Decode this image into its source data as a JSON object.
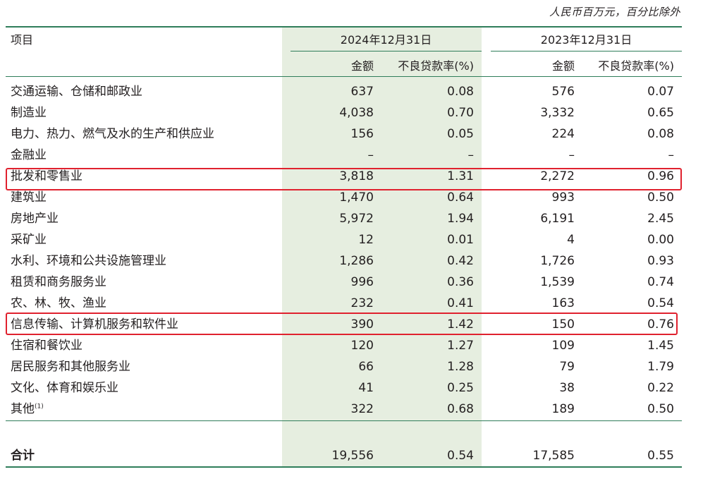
{
  "unit_note": "人民币百万元，百分比除外",
  "header": {
    "item": "项目",
    "period_2024": "2024年12月31日",
    "period_2023": "2023年12月31日",
    "amount": "金额",
    "npl_ratio": "不良贷款率(%)"
  },
  "rows": [
    {
      "item": "交通运输、仓储和邮政业",
      "amt_2024": "637",
      "npl_2024": "0.08",
      "amt_2023": "576",
      "npl_2023": "0.07"
    },
    {
      "item": "制造业",
      "amt_2024": "4,038",
      "npl_2024": "0.70",
      "amt_2023": "3,332",
      "npl_2023": "0.65"
    },
    {
      "item": "电力、热力、燃气及水的生产和供应业",
      "amt_2024": "156",
      "npl_2024": "0.05",
      "amt_2023": "224",
      "npl_2023": "0.08"
    },
    {
      "item": "金融业",
      "amt_2024": "–",
      "npl_2024": "–",
      "amt_2023": "–",
      "npl_2023": "–"
    },
    {
      "item": "批发和零售业",
      "amt_2024": "3,818",
      "npl_2024": "1.31",
      "amt_2023": "2,272",
      "npl_2023": "0.96"
    },
    {
      "item": "建筑业",
      "amt_2024": "1,470",
      "npl_2024": "0.64",
      "amt_2023": "993",
      "npl_2023": "0.50"
    },
    {
      "item": "房地产业",
      "amt_2024": "5,972",
      "npl_2024": "1.94",
      "amt_2023": "6,191",
      "npl_2023": "2.45"
    },
    {
      "item": "采矿业",
      "amt_2024": "12",
      "npl_2024": "0.01",
      "amt_2023": "4",
      "npl_2023": "0.00"
    },
    {
      "item": "水利、环境和公共设施管理业",
      "amt_2024": "1,286",
      "npl_2024": "0.42",
      "amt_2023": "1,726",
      "npl_2023": "0.93"
    },
    {
      "item": "租赁和商务服务业",
      "amt_2024": "996",
      "npl_2024": "0.36",
      "amt_2023": "1,539",
      "npl_2023": "0.74"
    },
    {
      "item": "农、林、牧、渔业",
      "amt_2024": "232",
      "npl_2024": "0.41",
      "amt_2023": "163",
      "npl_2023": "0.54"
    },
    {
      "item": "信息传输、计算机服务和软件业",
      "amt_2024": "390",
      "npl_2024": "1.42",
      "amt_2023": "150",
      "npl_2023": "0.76"
    },
    {
      "item": "住宿和餐饮业",
      "amt_2024": "120",
      "npl_2024": "1.27",
      "amt_2023": "109",
      "npl_2023": "1.45"
    },
    {
      "item": "居民服务和其他服务业",
      "amt_2024": "66",
      "npl_2024": "1.28",
      "amt_2023": "79",
      "npl_2023": "1.79"
    },
    {
      "item": "文化、体育和娱乐业",
      "amt_2024": "41",
      "npl_2024": "0.25",
      "amt_2023": "38",
      "npl_2023": "0.22"
    },
    {
      "item": "其他",
      "footnote": "(1)",
      "amt_2024": "322",
      "npl_2024": "0.68",
      "amt_2023": "189",
      "npl_2023": "0.50"
    }
  ],
  "total": {
    "item": "合计",
    "amt_2024": "19,556",
    "npl_2024": "0.54",
    "amt_2023": "17,585",
    "npl_2023": "0.55"
  },
  "colors": {
    "rule": "#2f7d5a",
    "shade": "#e6eee0",
    "highlight": "#e0212e"
  }
}
